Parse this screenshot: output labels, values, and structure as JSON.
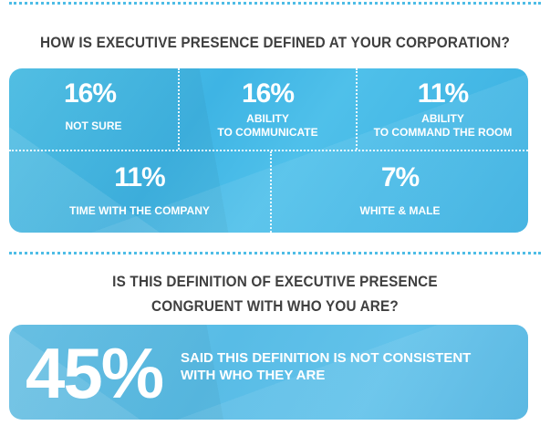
{
  "question_1": "HOW IS EXECUTIVE PRESENCE DEFINED AT YOUR CORPORATION?",
  "stats": [
    {
      "percent": "16%",
      "label_line1": "NOT SURE",
      "label_line2": ""
    },
    {
      "percent": "16%",
      "label_line1": "ABILITY",
      "label_line2": "TO COMMUNICATE"
    },
    {
      "percent": "11%",
      "label_line1": "ABILITY",
      "label_line2": "TO COMMAND THE ROOM"
    },
    {
      "percent": "11%",
      "label_line1": "TIME WITH THE COMPANY",
      "label_line2": ""
    },
    {
      "percent": "7%",
      "label_line1": "WHITE & MALE",
      "label_line2": ""
    }
  ],
  "question_2_line1": "IS THIS DEFINITION OF EXECUTIVE PRESENCE",
  "question_2_line2": "CONGRUENT WITH WHO YOU ARE?",
  "result": {
    "percent": "45%",
    "text_line1": "SAID THIS DEFINITION IS NOT CONSISTENT",
    "text_line2": "WITH WHO THEY ARE"
  },
  "colors": {
    "accent": "#4ebde6",
    "heading": "#3f3f3f",
    "panel": "#42b6e4",
    "text_on_panel": "#ffffff"
  }
}
